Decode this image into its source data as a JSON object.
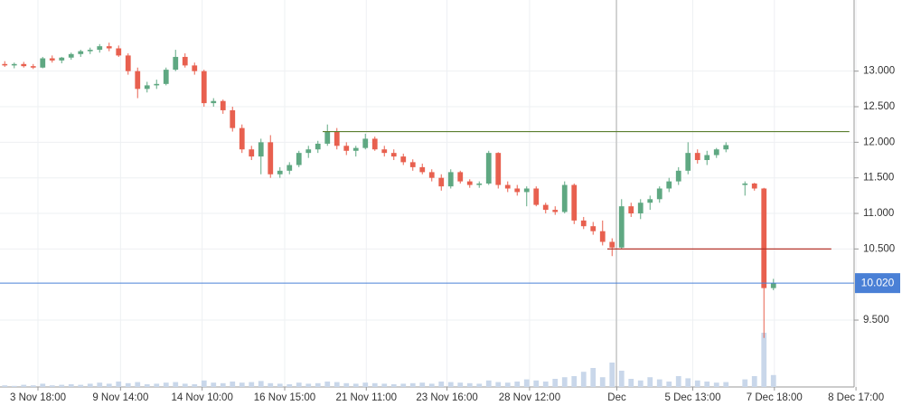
{
  "chart_data": {
    "type": "candlestick",
    "up_color": "#5fa882",
    "down_color": "#e8604f",
    "volume_color": "#c9d7ea",
    "xlim": [
      0,
      90
    ],
    "ylim": [
      8.56,
      14.0
    ],
    "vlim": [
      0,
      100
    ],
    "grid": true,
    "xticks": [
      {
        "value": 4,
        "label": "3 Nov 18:00"
      },
      {
        "value": 12.7,
        "label": "9 Nov 14:00"
      },
      {
        "value": 21.3,
        "label": "14 Nov 10:00"
      },
      {
        "value": 30,
        "label": "16 Nov 15:00"
      },
      {
        "value": 38.6,
        "label": "21 Nov 11:00"
      },
      {
        "value": 47.1,
        "label": "23 Nov 16:00"
      },
      {
        "value": 55.8,
        "label": "28 Nov 12:00"
      },
      {
        "value": 65,
        "label": "Dec"
      },
      {
        "value": 73,
        "label": "5 Dec 13:00"
      },
      {
        "value": 81.6,
        "label": "7 Dec 18:00"
      },
      {
        "value": 90.2,
        "label": "8 Dec 17:00"
      }
    ],
    "yticks": [
      {
        "value": 9.5,
        "label": "9.500"
      },
      {
        "value": 10.5,
        "label": "10.500"
      },
      {
        "value": 11,
        "label": "11.000"
      },
      {
        "value": 11.5,
        "label": "11.500"
      },
      {
        "value": 12,
        "label": "12.000"
      },
      {
        "value": 12.5,
        "label": "12.500"
      },
      {
        "value": 13,
        "label": "13.000"
      }
    ],
    "open": [
      13.1,
      13.08,
      13.1,
      13.07,
      13.05,
      13.18,
      13.15,
      13.19,
      13.24,
      13.28,
      13.3,
      13.35,
      13.32,
      13.22,
      13.0,
      12.75,
      12.8,
      12.82,
      13.02,
      13.2,
      13.08,
      13.0,
      12.55,
      12.58,
      12.45,
      12.2,
      11.9,
      11.8,
      12.0,
      11.55,
      11.6,
      11.68,
      11.85,
      11.9,
      11.98,
      12.15,
      11.95,
      11.88,
      11.92,
      12.05,
      11.9,
      11.85,
      11.8,
      11.72,
      11.65,
      11.58,
      11.5,
      11.38,
      11.58,
      11.45,
      11.4,
      11.42,
      11.85,
      11.4,
      11.35,
      11.3,
      11.35,
      11.12,
      11.05,
      11.02,
      11.4,
      10.9,
      10.82,
      10.75,
      10.6,
      10.52,
      11.1,
      11.0,
      11.15,
      11.2,
      11.35,
      11.45,
      11.6,
      11.85,
      11.75,
      11.82,
      11.9,
      null,
      11.4,
      11.42,
      11.35,
      9.95
    ],
    "high": [
      13.14,
      13.12,
      13.13,
      13.1,
      13.2,
      13.22,
      13.2,
      13.26,
      13.3,
      13.33,
      13.38,
      13.4,
      13.36,
      13.25,
      13.05,
      12.85,
      12.88,
      13.05,
      13.3,
      13.25,
      13.12,
      13.02,
      12.62,
      12.6,
      12.5,
      12.25,
      11.95,
      12.05,
      12.1,
      11.65,
      11.72,
      11.88,
      11.95,
      12.02,
      12.25,
      12.2,
      12.0,
      11.95,
      12.12,
      12.08,
      11.95,
      11.9,
      11.84,
      11.76,
      11.7,
      11.62,
      11.55,
      11.62,
      11.6,
      11.48,
      11.45,
      11.88,
      11.86,
      11.45,
      11.4,
      11.38,
      11.38,
      11.15,
      11.1,
      11.45,
      11.42,
      10.95,
      10.88,
      10.9,
      10.65,
      11.2,
      11.15,
      11.2,
      11.25,
      11.38,
      11.5,
      11.65,
      12.0,
      11.9,
      11.88,
      11.92,
      12.0,
      null,
      11.45,
      11.43,
      11.36,
      10.08
    ],
    "low": [
      13.06,
      13.04,
      13.05,
      13.03,
      13.04,
      13.12,
      13.11,
      13.16,
      13.2,
      13.24,
      13.26,
      13.28,
      13.2,
      12.95,
      12.62,
      12.7,
      12.75,
      12.8,
      13.0,
      13.05,
      12.95,
      12.5,
      12.5,
      12.4,
      12.15,
      11.85,
      11.75,
      11.55,
      11.5,
      11.5,
      11.55,
      11.65,
      11.78,
      11.85,
      11.95,
      11.9,
      11.82,
      11.8,
      11.9,
      11.88,
      11.8,
      11.75,
      11.68,
      11.6,
      11.55,
      11.45,
      11.32,
      11.35,
      11.42,
      11.36,
      11.36,
      11.4,
      11.35,
      11.3,
      11.25,
      11.1,
      11.1,
      11.0,
      10.98,
      11.0,
      10.85,
      10.78,
      10.7,
      10.55,
      10.4,
      10.5,
      10.95,
      10.92,
      11.05,
      11.15,
      11.3,
      11.4,
      11.55,
      11.7,
      11.68,
      11.78,
      11.86,
      null,
      11.25,
      11.32,
      9.25,
      9.92
    ],
    "close": [
      13.08,
      13.1,
      13.07,
      13.05,
      13.18,
      13.15,
      13.19,
      13.24,
      13.28,
      13.3,
      13.35,
      13.32,
      13.22,
      13.0,
      12.75,
      12.8,
      12.82,
      13.02,
      13.2,
      13.08,
      13.0,
      12.55,
      12.58,
      12.45,
      12.2,
      11.9,
      11.8,
      12.0,
      11.55,
      11.6,
      11.68,
      11.85,
      11.9,
      11.98,
      12.15,
      11.95,
      11.88,
      11.92,
      12.05,
      11.9,
      11.85,
      11.8,
      11.72,
      11.65,
      11.58,
      11.5,
      11.38,
      11.58,
      11.45,
      11.4,
      11.42,
      11.85,
      11.4,
      11.35,
      11.3,
      11.35,
      11.12,
      11.05,
      11.02,
      11.4,
      10.9,
      10.82,
      10.75,
      10.6,
      10.52,
      11.1,
      11.0,
      11.15,
      11.2,
      11.35,
      11.45,
      11.6,
      11.85,
      11.75,
      11.82,
      11.9,
      11.96,
      null,
      11.42,
      11.35,
      9.95,
      10.02
    ],
    "volumes": [
      3,
      2,
      4,
      3,
      6,
      3,
      4,
      5,
      4,
      6,
      8,
      6,
      10,
      7,
      9,
      5,
      6,
      8,
      9,
      6,
      5,
      12,
      8,
      7,
      10,
      8,
      9,
      11,
      7,
      6,
      5,
      8,
      6,
      7,
      10,
      9,
      7,
      6,
      8,
      7,
      6,
      5,
      6,
      7,
      8,
      6,
      10,
      9,
      8,
      7,
      6,
      12,
      9,
      8,
      10,
      14,
      12,
      10,
      15,
      18,
      20,
      28,
      35,
      18,
      45,
      30,
      15,
      12,
      18,
      14,
      10,
      20,
      16,
      12,
      10,
      8,
      9,
      null,
      14,
      20,
      100,
      22
    ],
    "levels": [
      {
        "value": 12.15,
        "x": [
          34,
          89.5
        ],
        "color": "#5c7f2f"
      },
      {
        "value": 10.5,
        "x": [
          64,
          87.6
        ],
        "color": "#b5352c"
      }
    ],
    "last_price": {
      "value": 10.02,
      "label": "10.020",
      "color": "#4a80d6"
    }
  }
}
